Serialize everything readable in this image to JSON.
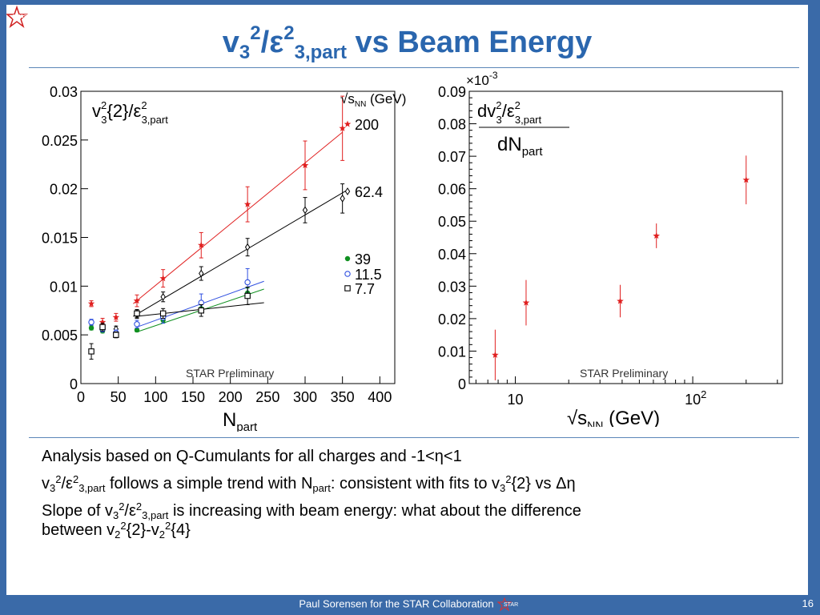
{
  "slide": {
    "title": {
      "v": "v",
      "sub_a": "3",
      "sup_a": "2",
      "slash": "/ε",
      "sup_b": "2",
      "sub_b": "3,part",
      "rest": " vs Beam Energy"
    },
    "logo_text": "STAR",
    "bullets": {
      "b1": "Analysis based on Q-Cumulants for all charges and -1<η<1",
      "b2": {
        "t1": "v",
        "s1": "3",
        "p1": "2",
        "t2": "/ε",
        "p2": "2",
        "s2": "3,part",
        "t3": " follows a simple trend with N",
        "s3": "part",
        "t4": ": consistent with fits to v",
        "s4": "3",
        "p4": "2",
        "t5": "{2} vs Δη"
      },
      "b3": {
        "t1": "Slope of v",
        "s1": "3",
        "p1": "2",
        "t2": "/ε",
        "p2": "2",
        "s2": "3,part",
        "t3": "  is increasing with beam energy: what about the difference",
        "t4": "between v",
        "s4": "2",
        "p4": "2",
        "t5": "{2}-v",
        "s5": "2",
        "p5": "2",
        "t6": "{4}"
      }
    },
    "footer": "Paul Sorensen for the STAR Collaboration",
    "page_number": "16"
  },
  "chart_data": [
    {
      "type": "scatter",
      "ylabel": {
        "main": "v",
        "sup": "2",
        "sub": "3",
        "rest": "{2}/ε",
        "sup2": "2",
        "sub2": "3,part"
      },
      "xlabel": {
        "main": "N",
        "sub": "part"
      },
      "legend_title": {
        "root": "√",
        "s": "s",
        "sub": "NN",
        "rest": " (GeV)"
      },
      "legend_placement": "right",
      "watermark": "STAR Preliminary",
      "xlim": [
        0,
        420
      ],
      "ylim": [
        0,
        0.03
      ],
      "xticks": [
        0,
        50,
        100,
        150,
        200,
        250,
        300,
        350,
        400
      ],
      "yticks": [
        0,
        0.005,
        0.01,
        0.015,
        0.02,
        0.025,
        0.03
      ],
      "ytick_labels": [
        "0",
        "0.005",
        "0.01",
        "0.015",
        "0.02",
        "0.025",
        "0.03"
      ],
      "series": [
        {
          "name": "200",
          "color": "#e02020",
          "marker": "star",
          "points": [
            [
              14,
              0.0082
            ],
            [
              29,
              0.0063
            ],
            [
              47,
              0.0068
            ],
            [
              75,
              0.0085
            ],
            [
              110,
              0.0108
            ],
            [
              161,
              0.0142
            ],
            [
              223,
              0.0184
            ],
            [
              300,
              0.0224
            ],
            [
              350,
              0.0262
            ]
          ],
          "errors": [
            0.0003,
            0.0004,
            0.0004,
            0.0006,
            0.0009,
            0.0013,
            0.0018,
            0.0025,
            0.0033
          ],
          "fit": [
            [
              70,
              0.0082
            ],
            [
              350,
              0.0258
            ]
          ]
        },
        {
          "name": "62.4",
          "color": "#000000",
          "marker": "diamond",
          "points": [
            [
              14,
              0.0062
            ],
            [
              29,
              0.0057
            ],
            [
              47,
              0.0056
            ],
            [
              75,
              0.0071
            ],
            [
              110,
              0.0089
            ],
            [
              161,
              0.0113
            ],
            [
              223,
              0.014
            ],
            [
              300,
              0.0178
            ],
            [
              350,
              0.019
            ]
          ],
          "errors": [
            0.0003,
            0.0003,
            0.0003,
            0.0004,
            0.0005,
            0.0007,
            0.0009,
            0.0013,
            0.0015
          ],
          "fit": [
            [
              70,
              0.0069
            ],
            [
              355,
              0.0198
            ]
          ]
        },
        {
          "name": "39",
          "color": "#109020",
          "marker": "circle-filled",
          "points": [
            [
              14,
              0.0057
            ],
            [
              29,
              0.0054
            ],
            [
              47,
              0.005
            ],
            [
              75,
              0.0055
            ],
            [
              110,
              0.0065
            ],
            [
              161,
              0.0077
            ],
            [
              223,
              0.0093
            ]
          ],
          "errors": [
            0.0002,
            0.0002,
            0.0002,
            0.0002,
            0.0003,
            0.0004,
            0.0005
          ],
          "fit": [
            [
              75,
              0.0053
            ],
            [
              245,
              0.0097
            ]
          ]
        },
        {
          "name": "11.5",
          "color": "#3050e0",
          "marker": "circle-open",
          "points": [
            [
              14,
              0.0063
            ],
            [
              29,
              0.0056
            ],
            [
              47,
              0.0052
            ],
            [
              75,
              0.0061
            ],
            [
              110,
              0.0068
            ],
            [
              161,
              0.0083
            ],
            [
              223,
              0.0104
            ]
          ],
          "errors": [
            0.0003,
            0.0003,
            0.0003,
            0.0004,
            0.0006,
            0.0009,
            0.0014
          ],
          "fit": [
            [
              75,
              0.0058
            ],
            [
              245,
              0.0105
            ]
          ]
        },
        {
          "name": "7.7",
          "color": "#000000",
          "marker": "square-open",
          "points": [
            [
              14,
              0.0033
            ],
            [
              29,
              0.0058
            ],
            [
              47,
              0.005
            ],
            [
              75,
              0.0072
            ],
            [
              110,
              0.0072
            ],
            [
              161,
              0.0075
            ],
            [
              223,
              0.009
            ]
          ],
          "errors": [
            0.0008,
            0.0004,
            0.0003,
            0.0004,
            0.0005,
            0.0006,
            0.0009
          ],
          "fit": [
            [
              75,
              0.0069
            ],
            [
              245,
              0.0083
            ]
          ]
        }
      ]
    },
    {
      "type": "scatter",
      "multiplier": {
        "base": "×10",
        "exp": "-3"
      },
      "ylabel": {
        "num_d": "dv",
        "num_sup": "2",
        "num_sub": "3",
        "num_rest": "/ε",
        "num_sup2": "2",
        "num_sub2": "3,part",
        "den": "dN",
        "den_sub": "part"
      },
      "xlabel": {
        "root": "√",
        "s": "s",
        "sub": "NN",
        "rest": " (GeV)"
      },
      "xscale": "log",
      "xlim": [
        5.5,
        320
      ],
      "ylim": [
        0,
        0.09
      ],
      "yticks": [
        0,
        0.01,
        0.02,
        0.03,
        0.04,
        0.05,
        0.06,
        0.07,
        0.08,
        0.09
      ],
      "ytick_labels": [
        "0",
        "0.01",
        "0.02",
        "0.03",
        "0.04",
        "0.05",
        "0.06",
        "0.07",
        "0.08",
        "0.09"
      ],
      "xtick_labels": [
        {
          "value": 10,
          "base": "10",
          "exp": ""
        },
        {
          "value": 100,
          "base": "10",
          "exp": "2"
        }
      ],
      "watermark": "STAR Preliminary",
      "series": [
        {
          "color": "#e02020",
          "marker": "star",
          "x": [
            7.7,
            11.5,
            39,
            62.4,
            200
          ],
          "y": [
            0.0088,
            0.0249,
            0.0254,
            0.0455,
            0.0627
          ],
          "errors": [
            0.0078,
            0.007,
            0.005,
            0.0038,
            0.0075
          ]
        }
      ]
    }
  ]
}
